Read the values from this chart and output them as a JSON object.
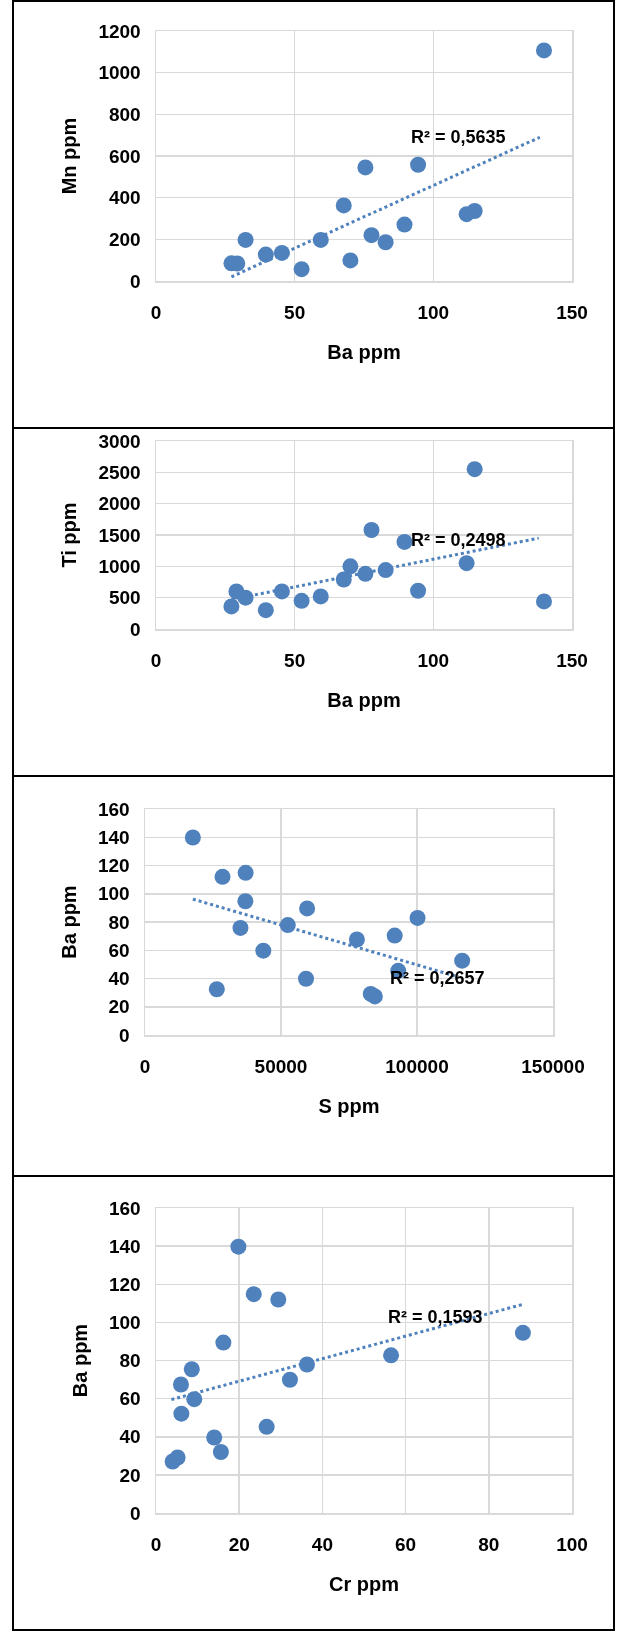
{
  "chart_data": [
    {
      "type": "scatter",
      "xlabel": "Ba ppm",
      "ylabel": "Mn ppm",
      "xlim": [
        0,
        150
      ],
      "xticks": [
        0,
        50,
        100,
        150
      ],
      "ylim": [
        0,
        1200
      ],
      "yticks": [
        0,
        200,
        400,
        600,
        800,
        1000,
        1200
      ],
      "grid": true,
      "series": [
        {
          "type": "scatter",
          "marker": "circle",
          "color": "#4f81bd",
          "x": [
            27.2,
            29.3,
            32.3,
            39.6,
            45.4,
            52.5,
            59.4,
            67.7,
            70.1,
            75.5,
            77.7,
            82.8,
            89.6,
            94.5,
            112,
            114.9,
            139.9
          ],
          "values": [
            85,
            84,
            197,
            127,
            135,
            57,
            197,
            363,
            99,
            545,
            220,
            186,
            271,
            558,
            321,
            336,
            1107
          ]
        },
        {
          "type": "line",
          "marker": "none",
          "color": "#4f81bd",
          "line_style": "dotted",
          "x": [
            27.2,
            138.4
          ],
          "values": [
            20,
            690
          ]
        }
      ],
      "annotations": [
        "R² = 0,5635"
      ]
    },
    {
      "type": "scatter",
      "xlabel": "Ba ppm",
      "ylabel": "Ti ppm",
      "xlim": [
        0,
        150
      ],
      "xticks": [
        0,
        50,
        100,
        150
      ],
      "ylim": [
        0,
        3000
      ],
      "yticks": [
        0,
        500,
        1000,
        1500,
        2000,
        2500,
        3000
      ],
      "grid": true,
      "series": [
        {
          "type": "scatter",
          "marker": "circle",
          "color": "#4f81bd",
          "x": [
            27.2,
            29,
            32.3,
            39.6,
            45.4,
            52.5,
            59.4,
            67.7,
            70.1,
            75.5,
            77.7,
            82.8,
            89.6,
            94.5,
            112,
            114.9,
            139.9
          ],
          "values": [
            360,
            600,
            500,
            300,
            600,
            450,
            520,
            790,
            1000,
            880,
            1580,
            940,
            1390,
            610,
            1050,
            2550,
            440
          ]
        },
        {
          "type": "line",
          "marker": "none",
          "color": "#4f81bd",
          "line_style": "dotted",
          "x": [
            27.2,
            138
          ],
          "values": [
            470,
            1450
          ]
        }
      ],
      "annotations": [
        "R² = 0,2498"
      ]
    },
    {
      "type": "scatter",
      "xlabel": "S ppm",
      "ylabel": "Ba ppm",
      "xlim": [
        0,
        150000
      ],
      "xticks": [
        0,
        50000,
        100000,
        150000
      ],
      "ylim": [
        0,
        160
      ],
      "yticks": [
        0,
        20,
        40,
        60,
        80,
        100,
        120,
        140,
        160
      ],
      "grid": true,
      "series": [
        {
          "type": "scatter",
          "marker": "circle",
          "color": "#4f81bd",
          "x": [
            17600,
            28500,
            37000,
            36900,
            59600,
            35100,
            52500,
            43500,
            100200,
            77900,
            91800,
            116600,
            93100,
            59200,
            26400,
            83000,
            84500
          ],
          "values": [
            139.8,
            112,
            114.8,
            94.7,
            89.6,
            75.8,
            77.8,
            59.7,
            82.9,
            67.6,
            70.4,
            52.6,
            45.4,
            39.8,
            32.4,
            29.1,
            27.3
          ]
        },
        {
          "type": "line",
          "marker": "none",
          "color": "#4f81bd",
          "line_style": "dotted",
          "x": [
            17600,
            115200
          ],
          "values": [
            96.2,
            41.1
          ]
        }
      ],
      "annotations": [
        "R² = 0,2657"
      ]
    },
    {
      "type": "scatter",
      "xlabel": "Cr ppm",
      "ylabel": "Ba ppm",
      "xlim": [
        0,
        100
      ],
      "xticks": [
        0,
        20,
        40,
        60,
        80,
        100
      ],
      "ylim": [
        0,
        160
      ],
      "yticks": [
        0,
        20,
        40,
        60,
        80,
        100,
        120,
        140,
        160
      ],
      "grid": true,
      "series": [
        {
          "type": "scatter",
          "marker": "circle",
          "color": "#4f81bd",
          "x": [
            19.8,
            23.5,
            29.4,
            16.2,
            8.6,
            6.0,
            9.2,
            6.1,
            14.0,
            15.6,
            26.6,
            32.2,
            36.3,
            56.5,
            88.2,
            5.2,
            4.0
          ],
          "values": [
            139.7,
            114.8,
            112,
            89.4,
            75.4,
            67.4,
            59.7,
            52.1,
            39.6,
            32.0,
            45.2,
            69.9,
            77.9,
            82.7,
            94.5,
            29.1,
            27.0
          ]
        },
        {
          "type": "line",
          "marker": "none",
          "color": "#4f81bd",
          "line_style": "dotted",
          "x": [
            3.7,
            88.6
          ],
          "values": [
            59.5,
            109.7
          ]
        }
      ],
      "annotations": [
        "R² = 0,1593"
      ]
    }
  ]
}
